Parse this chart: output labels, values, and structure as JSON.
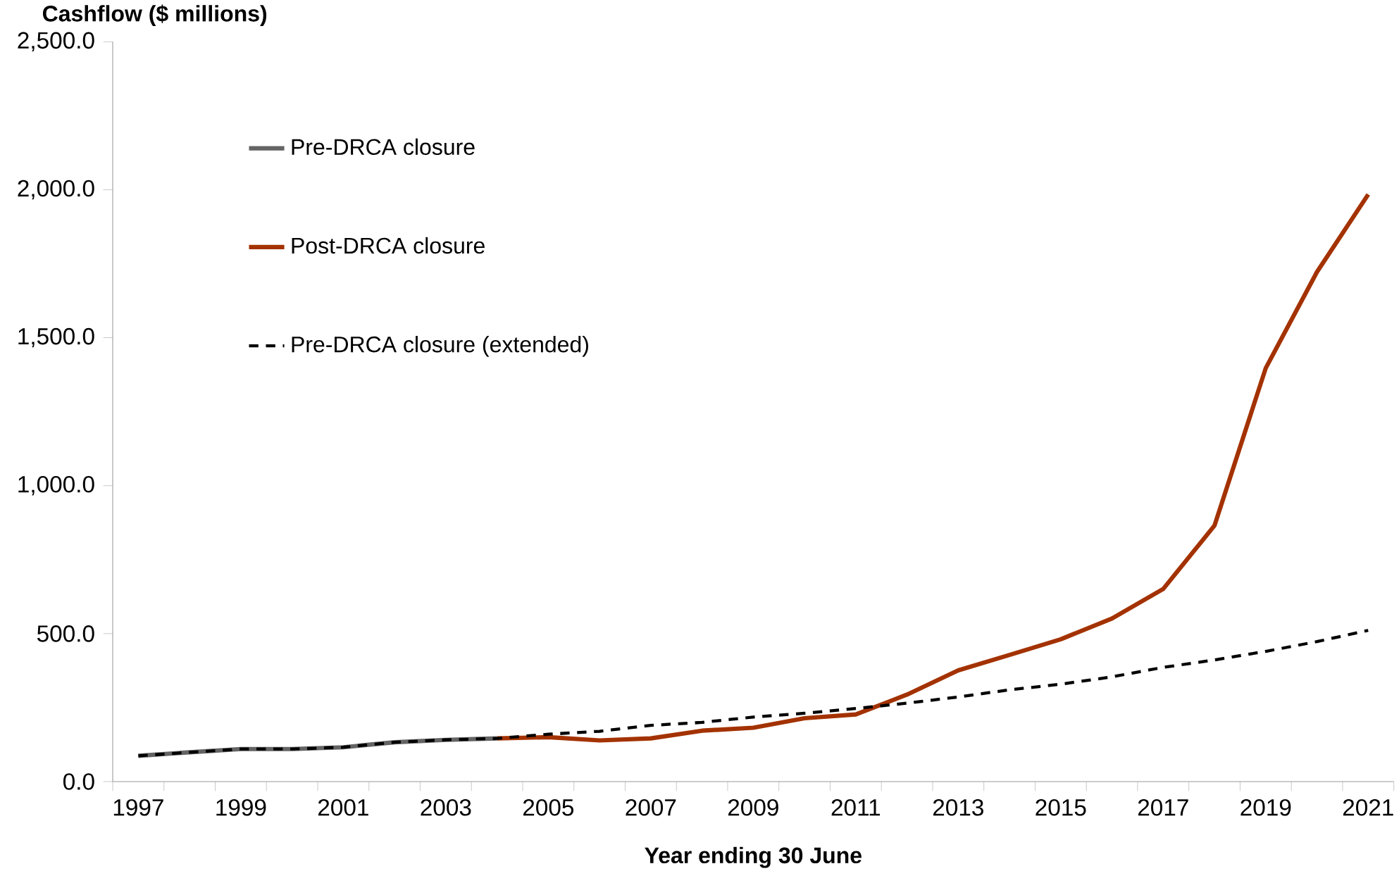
{
  "chart_data": {
    "type": "line",
    "ylabel": "Cashflow ($ millions)",
    "xlabel": "Year ending 30 June",
    "categories": [
      "1997",
      null,
      "1999",
      null,
      "2001",
      null,
      "2003",
      null,
      "2005",
      null,
      "2007",
      null,
      "2009",
      null,
      "2011",
      null,
      "2013",
      null,
      "2015",
      null,
      "2017",
      null,
      "2019",
      null,
      "2021"
    ],
    "series": [
      {
        "name": "Pre-DRCA closure",
        "color": "#646464",
        "line_style": "solid",
        "values": [
          87,
          99,
          110,
          110,
          116,
          133,
          141,
          146,
          null,
          null,
          null,
          null,
          null,
          null,
          null,
          null,
          null,
          null,
          null,
          null,
          null,
          null,
          null,
          null,
          null
        ]
      },
      {
        "name": "Post-DRCA closure",
        "color": "#a33200",
        "line_style": "solid",
        "values": [
          null,
          null,
          null,
          null,
          null,
          null,
          null,
          146,
          150,
          139,
          146,
          172,
          182,
          214,
          227,
          294,
          376,
          428,
          481,
          551,
          651,
          865,
          1397,
          1722,
          1984
        ]
      },
      {
        "name": "Pre-DRCA closure (extended)",
        "color": "#000000",
        "line_style": "dashed",
        "values": [
          87,
          99,
          110,
          110,
          116,
          133,
          141,
          146,
          160,
          170,
          190,
          200,
          218,
          231,
          247,
          265,
          286,
          310,
          329,
          354,
          386,
          411,
          440,
          473,
          511
        ]
      }
    ],
    "ylim": [
      0,
      2500
    ],
    "yticks": [
      {
        "value": 0,
        "label": "0.0"
      },
      {
        "value": 500,
        "label": "500.0"
      },
      {
        "value": 1000,
        "label": "1,000.0"
      },
      {
        "value": 1500,
        "label": "1,500.0"
      },
      {
        "value": 2000,
        "label": "2,000.0"
      },
      {
        "value": 2500,
        "label": "2,500.0"
      }
    ],
    "legend": "top left",
    "grid": false,
    "marker": "none"
  }
}
